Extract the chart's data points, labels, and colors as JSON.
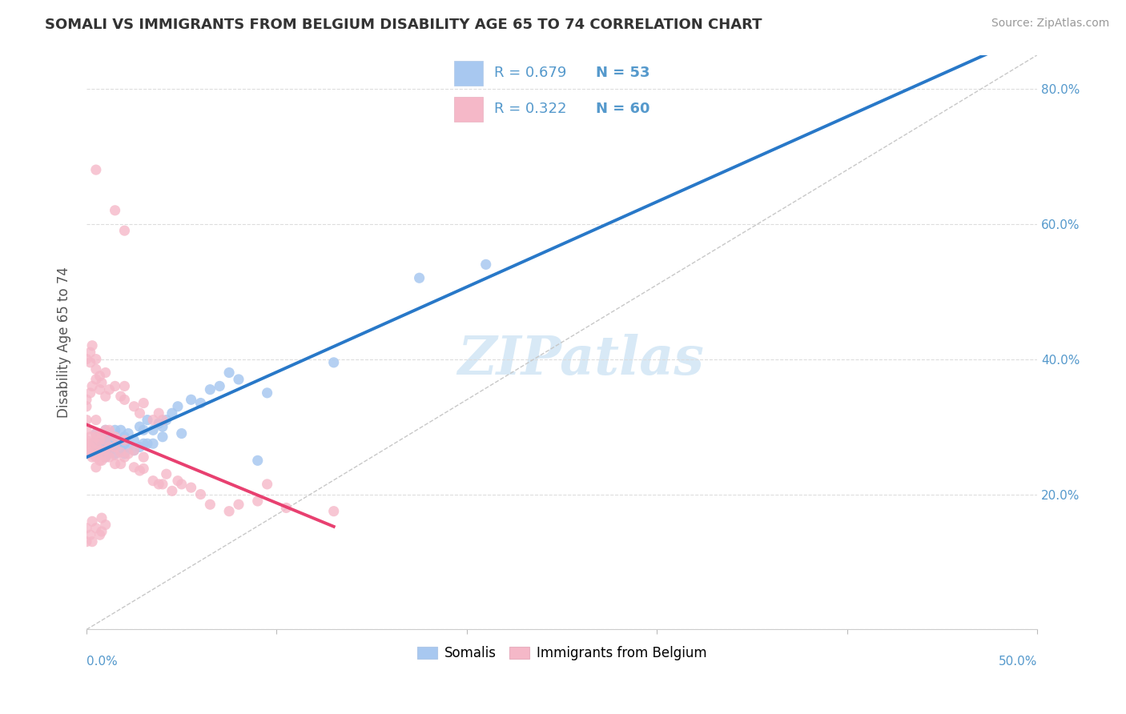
{
  "title": "SOMALI VS IMMIGRANTS FROM BELGIUM DISABILITY AGE 65 TO 74 CORRELATION CHART",
  "source": "Source: ZipAtlas.com",
  "ylabel": "Disability Age 65 to 74",
  "xlim": [
    0.0,
    0.5
  ],
  "ylim": [
    0.0,
    0.85
  ],
  "xticks": [
    0.0,
    0.1,
    0.2,
    0.3,
    0.4,
    0.5
  ],
  "yticks": [
    0.0,
    0.2,
    0.4,
    0.6,
    0.8
  ],
  "xticklabels": [
    "0.0%",
    "",
    "",
    "",
    "",
    "50.0%"
  ],
  "yticklabels": [
    "",
    "20.0%",
    "40.0%",
    "60.0%",
    "80.0%"
  ],
  "somali_color": "#a8c8f0",
  "belgium_color": "#f5b8c8",
  "somali_line_color": "#2878c8",
  "belgium_line_color": "#e84070",
  "diagonal_color": "#c8c8c8",
  "legend_label1": "Somalis",
  "legend_label2": "Immigrants from Belgium",
  "watermark": "ZIPatlas",
  "somali_x": [
    0.005,
    0.005,
    0.005,
    0.008,
    0.008,
    0.008,
    0.01,
    0.01,
    0.01,
    0.01,
    0.01,
    0.012,
    0.012,
    0.015,
    0.015,
    0.015,
    0.015,
    0.018,
    0.018,
    0.018,
    0.02,
    0.02,
    0.02,
    0.022,
    0.022,
    0.025,
    0.025,
    0.028,
    0.028,
    0.03,
    0.03,
    0.032,
    0.032,
    0.035,
    0.035,
    0.038,
    0.04,
    0.04,
    0.042,
    0.045,
    0.048,
    0.05,
    0.055,
    0.06,
    0.065,
    0.07,
    0.075,
    0.08,
    0.09,
    0.095,
    0.13,
    0.175,
    0.21
  ],
  "somali_y": [
    0.27,
    0.28,
    0.29,
    0.26,
    0.275,
    0.285,
    0.255,
    0.265,
    0.275,
    0.28,
    0.295,
    0.265,
    0.28,
    0.26,
    0.27,
    0.28,
    0.295,
    0.265,
    0.28,
    0.295,
    0.26,
    0.275,
    0.285,
    0.27,
    0.29,
    0.265,
    0.28,
    0.27,
    0.3,
    0.275,
    0.295,
    0.275,
    0.31,
    0.275,
    0.295,
    0.305,
    0.285,
    0.3,
    0.31,
    0.32,
    0.33,
    0.29,
    0.34,
    0.335,
    0.355,
    0.36,
    0.38,
    0.37,
    0.25,
    0.35,
    0.395,
    0.52,
    0.54
  ],
  "belgium_x": [
    0.0,
    0.0,
    0.0,
    0.0,
    0.0,
    0.002,
    0.002,
    0.002,
    0.003,
    0.003,
    0.005,
    0.005,
    0.005,
    0.005,
    0.005,
    0.005,
    0.005,
    0.007,
    0.007,
    0.007,
    0.008,
    0.008,
    0.008,
    0.01,
    0.01,
    0.01,
    0.01,
    0.012,
    0.012,
    0.012,
    0.015,
    0.015,
    0.015,
    0.015,
    0.018,
    0.018,
    0.02,
    0.02,
    0.022,
    0.025,
    0.025,
    0.028,
    0.03,
    0.03,
    0.035,
    0.038,
    0.04,
    0.042,
    0.045,
    0.048,
    0.05,
    0.055,
    0.06,
    0.065,
    0.075,
    0.08,
    0.09,
    0.095,
    0.105,
    0.13
  ],
  "belgium_y": [
    0.265,
    0.275,
    0.28,
    0.295,
    0.31,
    0.26,
    0.27,
    0.285,
    0.255,
    0.275,
    0.24,
    0.255,
    0.265,
    0.275,
    0.285,
    0.29,
    0.31,
    0.25,
    0.265,
    0.28,
    0.25,
    0.265,
    0.29,
    0.255,
    0.265,
    0.28,
    0.295,
    0.255,
    0.27,
    0.295,
    0.245,
    0.258,
    0.27,
    0.285,
    0.245,
    0.262,
    0.255,
    0.28,
    0.26,
    0.24,
    0.265,
    0.235,
    0.238,
    0.255,
    0.22,
    0.215,
    0.215,
    0.23,
    0.205,
    0.22,
    0.215,
    0.21,
    0.2,
    0.185,
    0.175,
    0.185,
    0.19,
    0.215,
    0.18,
    0.175
  ],
  "belgium_outlier_x": [
    0.002,
    0.003,
    0.005,
    0.005,
    0.005,
    0.007,
    0.007,
    0.008,
    0.01,
    0.01,
    0.012,
    0.015,
    0.018,
    0.02,
    0.02,
    0.025,
    0.028,
    0.03,
    0.035,
    0.038,
    0.04,
    0.0,
    0.0,
    0.002,
    0.003
  ],
  "belgium_outlier_y": [
    0.35,
    0.36,
    0.37,
    0.385,
    0.4,
    0.355,
    0.375,
    0.365,
    0.345,
    0.38,
    0.355,
    0.36,
    0.345,
    0.36,
    0.34,
    0.33,
    0.32,
    0.335,
    0.31,
    0.32,
    0.31,
    0.33,
    0.34,
    0.395,
    0.42
  ]
}
